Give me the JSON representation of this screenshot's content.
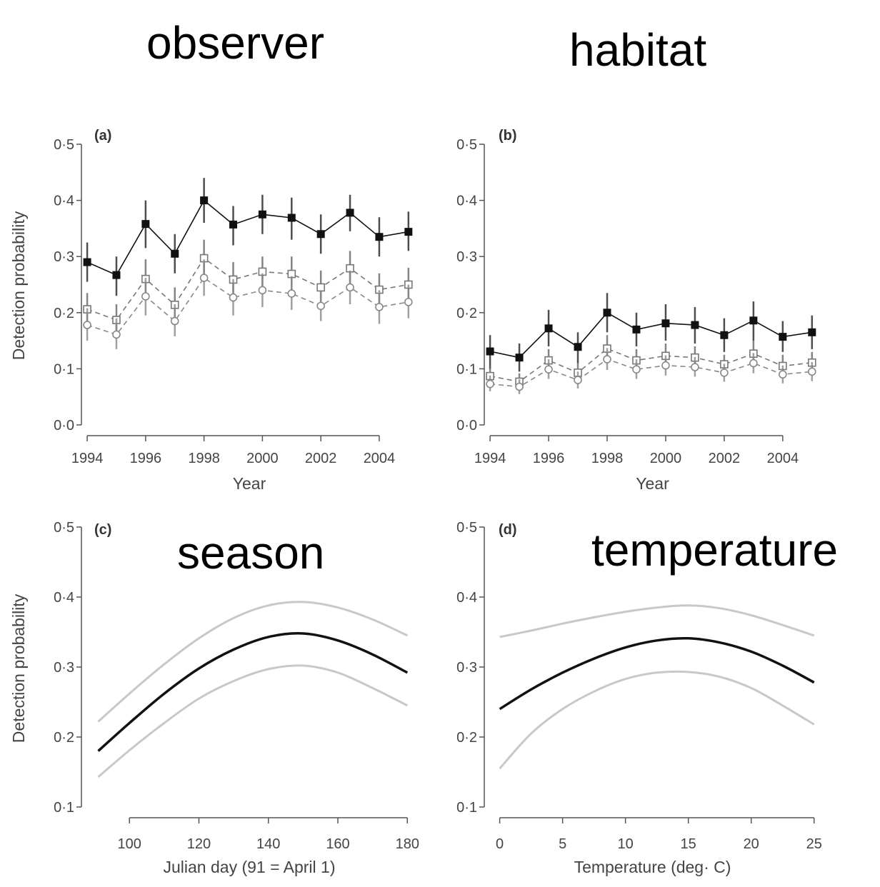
{
  "overlay_labels": {
    "observer": "observer",
    "habitat": "habitat",
    "season": "season",
    "temperature": "temperature"
  },
  "colors": {
    "series_dark": "#111111",
    "series_mid": "#777777",
    "series_light": "#888888",
    "ci_light": "#c8c8c8",
    "axis": "#555555"
  },
  "chart_data": [
    {
      "id": "a",
      "type": "line",
      "panel_label": "(a)",
      "xlabel": "Year",
      "ylabel": "Detection probability",
      "xlim": [
        1993.9,
        2005.2
      ],
      "ylim": [
        0,
        0.5
      ],
      "xticks": [
        1994,
        1996,
        1998,
        2000,
        2002,
        2004
      ],
      "xtick_labels": [
        "1994",
        "1996",
        "1998",
        "2000",
        "2002",
        "2004"
      ],
      "yticks": [
        0,
        0.1,
        0.2,
        0.3,
        0.4,
        0.5
      ],
      "ytick_labels": [
        "0·0",
        "0·1",
        "0·2",
        "0·3",
        "0·4",
        "0·5"
      ],
      "x": [
        1994,
        1995,
        1996,
        1997,
        1998,
        1999,
        2000,
        2001,
        2002,
        2003,
        2004,
        2005
      ],
      "series": [
        {
          "name": "filled-square",
          "marker": "square-filled",
          "line": "solid",
          "values": [
            0.29,
            0.267,
            0.358,
            0.305,
            0.4,
            0.357,
            0.375,
            0.369,
            0.34,
            0.378,
            0.335,
            0.344
          ],
          "lower": [
            0.255,
            0.23,
            0.315,
            0.27,
            0.36,
            0.32,
            0.34,
            0.33,
            0.305,
            0.345,
            0.3,
            0.31
          ],
          "upper": [
            0.325,
            0.3,
            0.4,
            0.34,
            0.44,
            0.39,
            0.41,
            0.405,
            0.375,
            0.41,
            0.37,
            0.38
          ]
        },
        {
          "name": "open-square",
          "marker": "square-open",
          "line": "dashed",
          "values": [
            0.206,
            0.187,
            0.26,
            0.214,
            0.297,
            0.259,
            0.273,
            0.269,
            0.245,
            0.279,
            0.241,
            0.25
          ],
          "lower": [
            0.175,
            0.16,
            0.225,
            0.185,
            0.265,
            0.23,
            0.245,
            0.24,
            0.215,
            0.25,
            0.21,
            0.22
          ],
          "upper": [
            0.235,
            0.215,
            0.295,
            0.245,
            0.33,
            0.29,
            0.3,
            0.3,
            0.275,
            0.31,
            0.27,
            0.28
          ]
        },
        {
          "name": "open-circle",
          "marker": "circle-open",
          "line": "dashed",
          "values": [
            0.178,
            0.161,
            0.229,
            0.185,
            0.262,
            0.227,
            0.24,
            0.234,
            0.212,
            0.245,
            0.21,
            0.219
          ],
          "lower": [
            0.15,
            0.135,
            0.195,
            0.158,
            0.23,
            0.195,
            0.21,
            0.205,
            0.185,
            0.215,
            0.18,
            0.19
          ],
          "upper": [
            0.208,
            0.19,
            0.262,
            0.215,
            0.295,
            0.26,
            0.27,
            0.265,
            0.24,
            0.275,
            0.24,
            0.25
          ]
        }
      ]
    },
    {
      "id": "b",
      "type": "line",
      "panel_label": "(b)",
      "xlabel": "Year",
      "ylabel": "",
      "xlim": [
        1993.9,
        2005.2
      ],
      "ylim": [
        0,
        0.5
      ],
      "xticks": [
        1994,
        1996,
        1998,
        2000,
        2002,
        2004
      ],
      "xtick_labels": [
        "1994",
        "1996",
        "1998",
        "2000",
        "2002",
        "2004"
      ],
      "yticks": [
        0,
        0.1,
        0.2,
        0.3,
        0.4,
        0.5
      ],
      "ytick_labels": [
        "0·0",
        "0·1",
        "0·2",
        "0·3",
        "0·4",
        "0·5"
      ],
      "x": [
        1994,
        1995,
        1996,
        1997,
        1998,
        1999,
        2000,
        2001,
        2002,
        2003,
        2004,
        2005
      ],
      "series": [
        {
          "name": "filled-square",
          "marker": "square-filled",
          "line": "solid",
          "values": [
            0.131,
            0.12,
            0.172,
            0.139,
            0.2,
            0.17,
            0.181,
            0.178,
            0.16,
            0.186,
            0.157,
            0.165
          ],
          "lower": [
            0.1,
            0.095,
            0.14,
            0.11,
            0.165,
            0.14,
            0.15,
            0.145,
            0.13,
            0.15,
            0.13,
            0.135
          ],
          "upper": [
            0.16,
            0.145,
            0.205,
            0.165,
            0.235,
            0.2,
            0.215,
            0.21,
            0.19,
            0.22,
            0.185,
            0.195
          ]
        },
        {
          "name": "open-square",
          "marker": "square-open",
          "line": "dashed",
          "values": [
            0.087,
            0.077,
            0.115,
            0.093,
            0.136,
            0.115,
            0.123,
            0.12,
            0.108,
            0.127,
            0.105,
            0.111
          ],
          "lower": [
            0.07,
            0.062,
            0.095,
            0.075,
            0.115,
            0.095,
            0.1,
            0.1,
            0.09,
            0.105,
            0.085,
            0.09
          ],
          "upper": [
            0.105,
            0.092,
            0.135,
            0.11,
            0.16,
            0.135,
            0.145,
            0.14,
            0.125,
            0.15,
            0.125,
            0.13
          ]
        },
        {
          "name": "open-circle",
          "marker": "circle-open",
          "line": "dashed",
          "values": [
            0.073,
            0.068,
            0.099,
            0.08,
            0.117,
            0.099,
            0.106,
            0.103,
            0.093,
            0.11,
            0.09,
            0.095
          ],
          "lower": [
            0.06,
            0.055,
            0.082,
            0.065,
            0.098,
            0.082,
            0.088,
            0.086,
            0.077,
            0.092,
            0.074,
            0.078
          ],
          "upper": [
            0.088,
            0.081,
            0.117,
            0.095,
            0.137,
            0.117,
            0.124,
            0.121,
            0.109,
            0.128,
            0.106,
            0.112
          ]
        }
      ]
    },
    {
      "id": "c",
      "type": "line",
      "panel_label": "(c)",
      "xlabel": "Julian day (91 = April 1)",
      "ylabel": "Detection probability",
      "xlim": [
        87,
        182
      ],
      "ylim": [
        0.1,
        0.5
      ],
      "xticks": [
        100,
        120,
        140,
        160,
        180
      ],
      "xtick_labels": [
        "100",
        "120",
        "140",
        "160",
        "180"
      ],
      "yticks": [
        0.1,
        0.2,
        0.3,
        0.4,
        0.5
      ],
      "ytick_labels": [
        "0·1",
        "0·2",
        "0·3",
        "0·4",
        "0·5"
      ],
      "x": [
        91,
        100,
        110,
        120,
        130,
        140,
        150,
        160,
        170,
        180
      ],
      "series": [
        {
          "name": "estimate",
          "role": "estimate",
          "values": [
            0.18,
            0.22,
            0.262,
            0.298,
            0.325,
            0.343,
            0.348,
            0.338,
            0.318,
            0.292
          ]
        },
        {
          "name": "upper",
          "role": "ci",
          "values": [
            0.222,
            0.262,
            0.304,
            0.341,
            0.37,
            0.388,
            0.393,
            0.385,
            0.368,
            0.345
          ]
        },
        {
          "name": "lower",
          "role": "ci",
          "values": [
            0.143,
            0.181,
            0.22,
            0.255,
            0.28,
            0.297,
            0.302,
            0.292,
            0.27,
            0.245
          ]
        }
      ]
    },
    {
      "id": "d",
      "type": "line",
      "panel_label": "(d)",
      "xlabel": "Temperature (deg· C)",
      "ylabel": "",
      "xlim": [
        -1,
        25.3
      ],
      "ylim": [
        0.1,
        0.5
      ],
      "xticks": [
        0,
        5,
        10,
        15,
        20,
        25
      ],
      "xtick_labels": [
        "0",
        "5",
        "10",
        "15",
        "20",
        "25"
      ],
      "yticks": [
        0.1,
        0.2,
        0.3,
        0.4,
        0.5
      ],
      "ytick_labels": [
        "0·1",
        "0·2",
        "0·3",
        "0·4",
        "0·5"
      ],
      "x": [
        0,
        2.5,
        5,
        7.5,
        10,
        12.5,
        15,
        17.5,
        20,
        22.5,
        25
      ],
      "series": [
        {
          "name": "estimate",
          "role": "estimate",
          "values": [
            0.24,
            0.268,
            0.292,
            0.312,
            0.328,
            0.338,
            0.341,
            0.335,
            0.322,
            0.302,
            0.278
          ]
        },
        {
          "name": "upper",
          "role": "ci",
          "values": [
            0.343,
            0.352,
            0.362,
            0.371,
            0.379,
            0.385,
            0.388,
            0.384,
            0.374,
            0.36,
            0.345
          ]
        },
        {
          "name": "lower",
          "role": "ci",
          "values": [
            0.155,
            0.205,
            0.24,
            0.265,
            0.283,
            0.292,
            0.293,
            0.286,
            0.27,
            0.245,
            0.218
          ]
        }
      ]
    }
  ]
}
